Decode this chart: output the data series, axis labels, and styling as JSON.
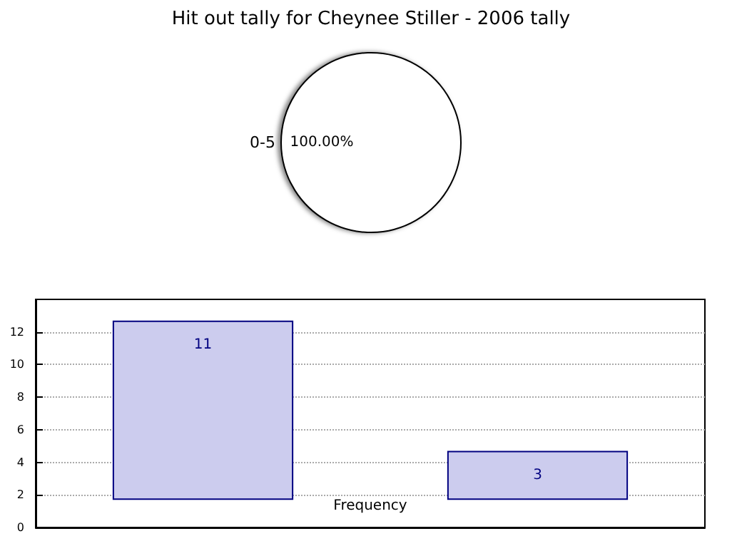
{
  "chart_data": [
    {
      "type": "pie",
      "title": "Hit out tally for Cheynee Stiller - 2006 tally",
      "categories": [
        "0-5"
      ],
      "values": [
        100
      ],
      "colors": [
        "#ffffff"
      ],
      "value_labels": [
        "100.00%"
      ]
    },
    {
      "type": "bar",
      "xlabel": "Frequency",
      "categories": [
        null,
        null
      ],
      "base": [
        1.7,
        1.7
      ],
      "values": [
        11,
        3
      ],
      "color": "#ccccee",
      "data_labels": true,
      "ylim": [
        0,
        14
      ],
      "yticks": [
        0,
        2,
        4,
        6,
        8,
        10,
        12
      ],
      "grid": "y"
    }
  ]
}
